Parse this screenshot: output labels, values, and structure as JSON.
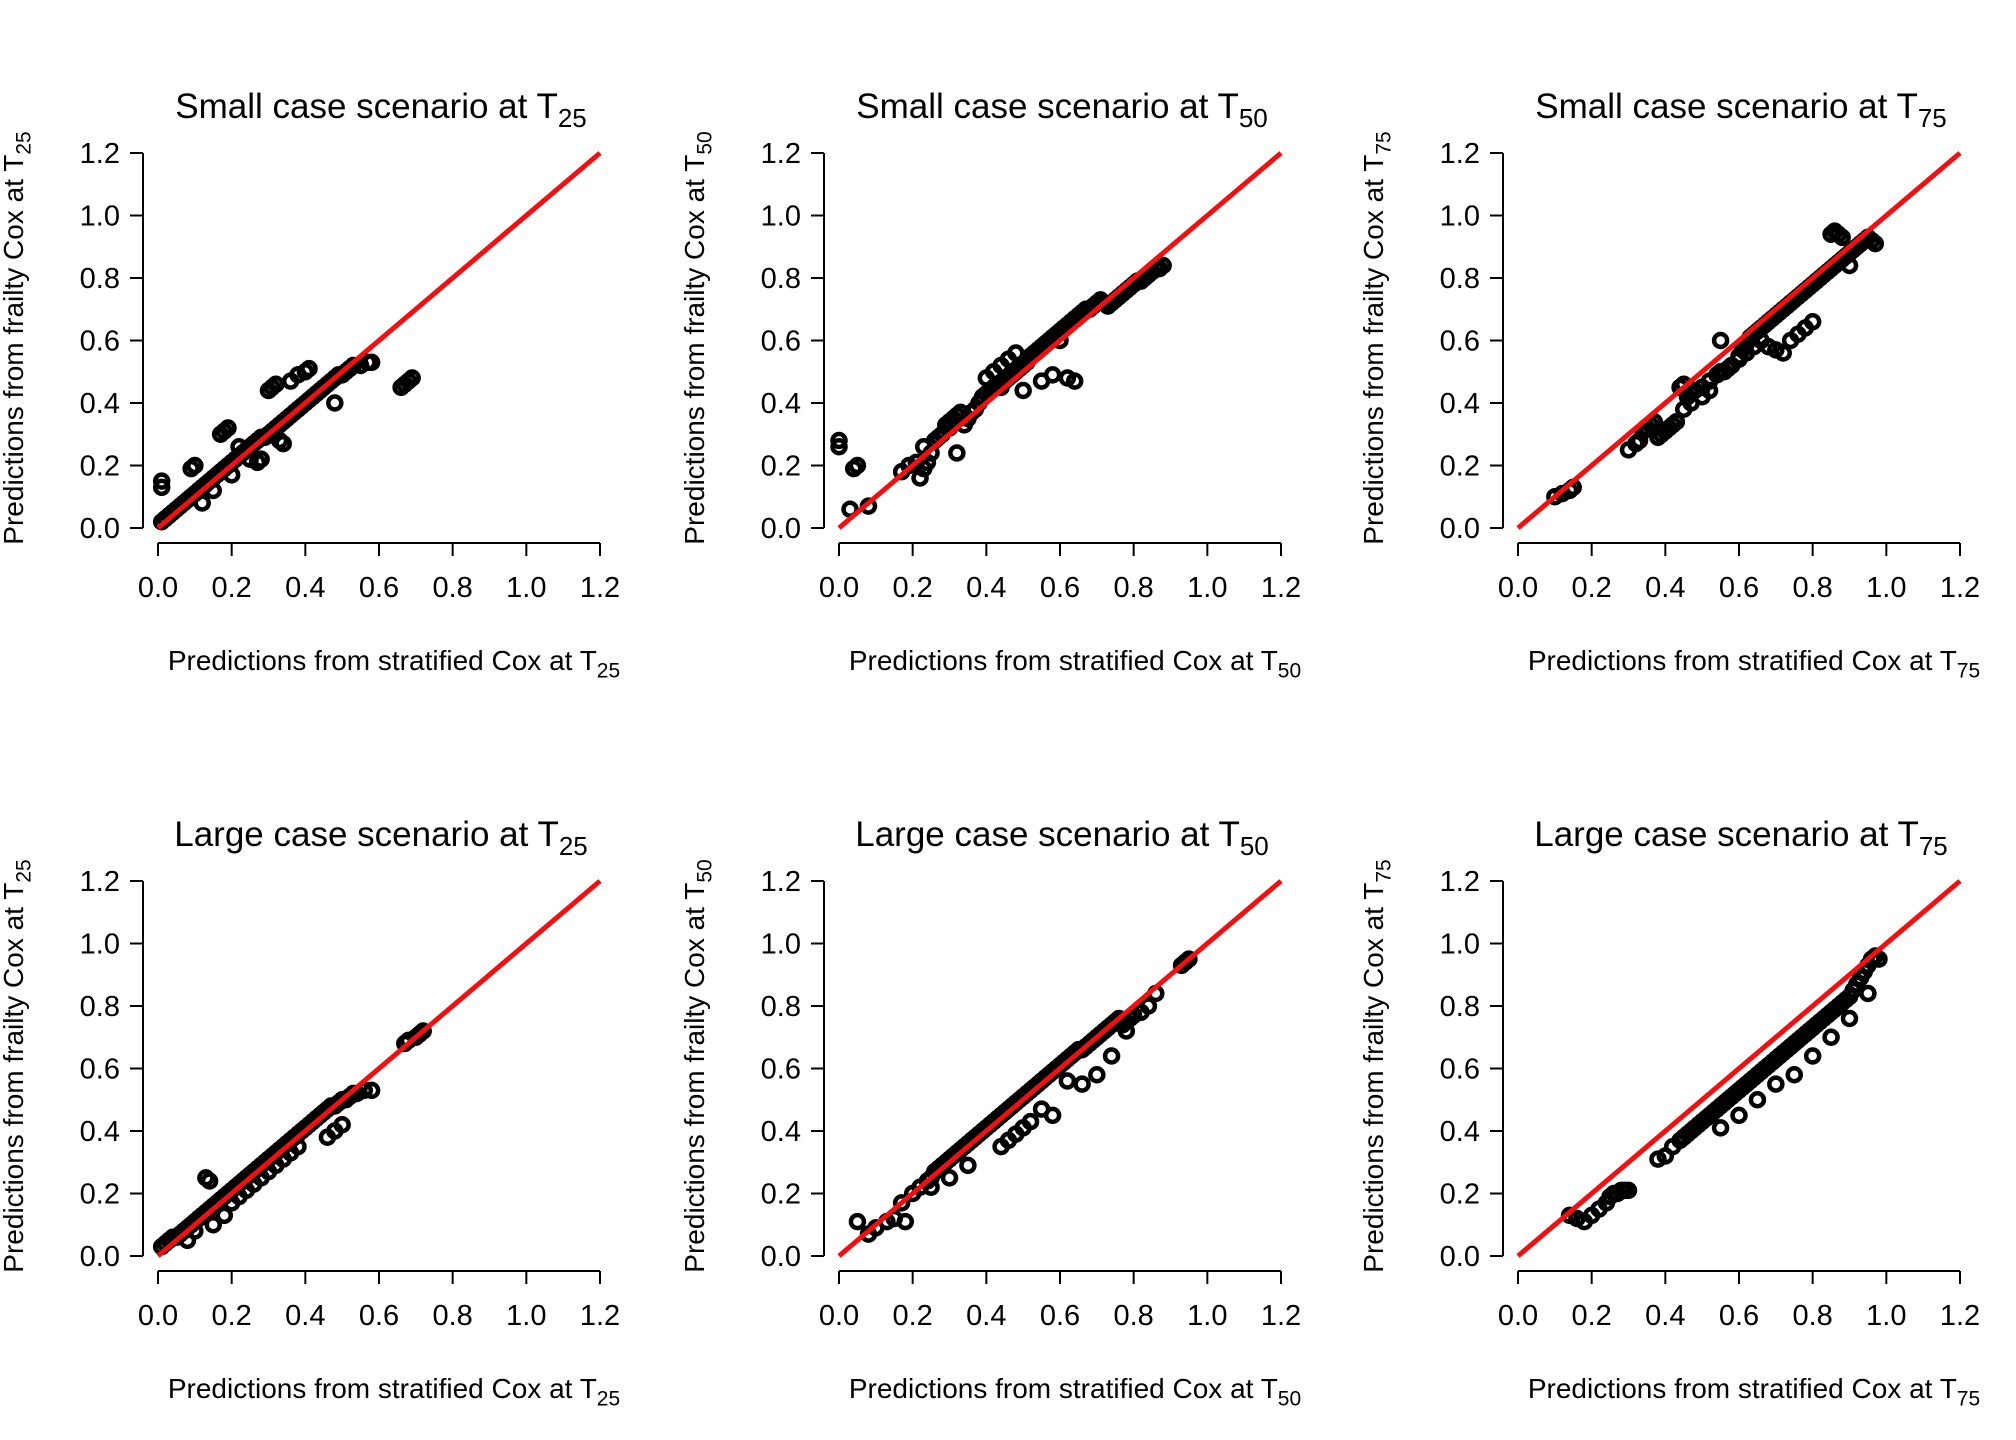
{
  "chart_data": [
    {
      "type": "scatter",
      "title": "Small case scenario at T",
      "title_sub": "25",
      "xlabel": "Predictions from stratified Cox at T",
      "xlabel_sub": "25",
      "ylabel": "Predictions from frailty Cox at T",
      "ylabel_sub": "25",
      "xlim": [
        0,
        1.2
      ],
      "ylim": [
        0,
        1.2
      ],
      "xticks": [
        "0.0",
        "0.2",
        "0.4",
        "0.6",
        "0.8",
        "1.0",
        "1.2"
      ],
      "yticks": [
        "0.0",
        "0.2",
        "0.4",
        "0.6",
        "0.8",
        "1.0",
        "1.2"
      ],
      "reference_line": {
        "from": [
          0,
          0
        ],
        "to": [
          1.2,
          1.2
        ],
        "color": "#ee1111"
      },
      "point_color": "#000000",
      "x": [
        0.01,
        0.02,
        0.03,
        0.04,
        0.05,
        0.06,
        0.07,
        0.08,
        0.09,
        0.1,
        0.11,
        0.12,
        0.13,
        0.14,
        0.15,
        0.16,
        0.17,
        0.18,
        0.19,
        0.2,
        0.21,
        0.22,
        0.23,
        0.24,
        0.25,
        0.26,
        0.27,
        0.28,
        0.29,
        0.3,
        0.31,
        0.32,
        0.33,
        0.34,
        0.35,
        0.36,
        0.37,
        0.38,
        0.39,
        0.4,
        0.41,
        0.42,
        0.43,
        0.44,
        0.45,
        0.46,
        0.47,
        0.48,
        0.49,
        0.5,
        0.51,
        0.52,
        0.53,
        0.55,
        0.57,
        0.58,
        0.01,
        0.01,
        0.09,
        0.1,
        0.17,
        0.18,
        0.19,
        0.3,
        0.31,
        0.32,
        0.36,
        0.38,
        0.4,
        0.41,
        0.15,
        0.2,
        0.25,
        0.28,
        0.33,
        0.34,
        0.48,
        0.66,
        0.67,
        0.68,
        0.69,
        0.12,
        0.22,
        0.27
      ],
      "y": [
        0.02,
        0.03,
        0.04,
        0.05,
        0.06,
        0.07,
        0.08,
        0.09,
        0.1,
        0.11,
        0.12,
        0.13,
        0.14,
        0.15,
        0.16,
        0.17,
        0.18,
        0.19,
        0.2,
        0.21,
        0.22,
        0.23,
        0.24,
        0.25,
        0.26,
        0.27,
        0.28,
        0.29,
        0.29,
        0.3,
        0.31,
        0.32,
        0.33,
        0.34,
        0.35,
        0.36,
        0.37,
        0.38,
        0.39,
        0.4,
        0.41,
        0.42,
        0.43,
        0.44,
        0.45,
        0.46,
        0.47,
        0.48,
        0.49,
        0.49,
        0.5,
        0.51,
        0.52,
        0.52,
        0.53,
        0.53,
        0.13,
        0.15,
        0.19,
        0.2,
        0.3,
        0.31,
        0.32,
        0.44,
        0.45,
        0.46,
        0.47,
        0.49,
        0.5,
        0.51,
        0.12,
        0.17,
        0.22,
        0.22,
        0.28,
        0.27,
        0.4,
        0.45,
        0.46,
        0.47,
        0.48,
        0.08,
        0.26,
        0.21
      ]
    },
    {
      "type": "scatter",
      "title": "Small case scenario at T",
      "title_sub": "50",
      "xlabel": "Predictions from stratified Cox at T",
      "xlabel_sub": "50",
      "ylabel": "Predictions from frailty Cox at T",
      "ylabel_sub": "50",
      "xlim": [
        0,
        1.2
      ],
      "ylim": [
        0,
        1.2
      ],
      "xticks": [
        "0.0",
        "0.2",
        "0.4",
        "0.6",
        "0.8",
        "1.0",
        "1.2"
      ],
      "yticks": [
        "0.0",
        "0.2",
        "0.4",
        "0.6",
        "0.8",
        "1.0",
        "1.2"
      ],
      "reference_line": {
        "from": [
          0,
          0
        ],
        "to": [
          1.2,
          1.2
        ],
        "color": "#ee1111"
      },
      "point_color": "#000000",
      "x": [
        0.0,
        0.0,
        0.03,
        0.04,
        0.05,
        0.08,
        0.17,
        0.19,
        0.21,
        0.22,
        0.23,
        0.24,
        0.25,
        0.26,
        0.27,
        0.28,
        0.29,
        0.3,
        0.31,
        0.32,
        0.33,
        0.34,
        0.35,
        0.36,
        0.37,
        0.38,
        0.39,
        0.4,
        0.41,
        0.42,
        0.43,
        0.44,
        0.45,
        0.46,
        0.47,
        0.48,
        0.49,
        0.5,
        0.51,
        0.52,
        0.53,
        0.54,
        0.55,
        0.56,
        0.57,
        0.58,
        0.59,
        0.6,
        0.61,
        0.62,
        0.63,
        0.64,
        0.65,
        0.66,
        0.67,
        0.68,
        0.69,
        0.7,
        0.71,
        0.72,
        0.73,
        0.74,
        0.75,
        0.76,
        0.77,
        0.78,
        0.79,
        0.8,
        0.81,
        0.82,
        0.83,
        0.84,
        0.85,
        0.86,
        0.87,
        0.88,
        0.4,
        0.42,
        0.44,
        0.46,
        0.48,
        0.5,
        0.55,
        0.58,
        0.6,
        0.62,
        0.64,
        0.32,
        0.3,
        0.23
      ],
      "y": [
        0.26,
        0.28,
        0.06,
        0.19,
        0.2,
        0.07,
        0.18,
        0.2,
        0.21,
        0.16,
        0.19,
        0.21,
        0.24,
        0.28,
        0.29,
        0.3,
        0.33,
        0.34,
        0.35,
        0.36,
        0.37,
        0.33,
        0.35,
        0.37,
        0.38,
        0.4,
        0.42,
        0.43,
        0.44,
        0.45,
        0.46,
        0.45,
        0.47,
        0.48,
        0.49,
        0.5,
        0.51,
        0.52,
        0.53,
        0.55,
        0.56,
        0.57,
        0.58,
        0.59,
        0.6,
        0.61,
        0.62,
        0.63,
        0.64,
        0.65,
        0.66,
        0.67,
        0.68,
        0.69,
        0.7,
        0.7,
        0.71,
        0.72,
        0.73,
        0.72,
        0.71,
        0.72,
        0.73,
        0.74,
        0.75,
        0.76,
        0.77,
        0.78,
        0.79,
        0.79,
        0.8,
        0.81,
        0.82,
        0.83,
        0.83,
        0.84,
        0.48,
        0.5,
        0.52,
        0.54,
        0.56,
        0.44,
        0.47,
        0.49,
        0.6,
        0.48,
        0.47,
        0.24,
        0.32,
        0.26
      ]
    },
    {
      "type": "scatter",
      "title": "Small case scenario at T",
      "title_sub": "75",
      "xlabel": "Predictions from stratified Cox at T",
      "xlabel_sub": "75",
      "ylabel": "Predictions from frailty Cox at T",
      "ylabel_sub": "75",
      "xlim": [
        0,
        1.2
      ],
      "ylim": [
        0,
        1.2
      ],
      "xticks": [
        "0.0",
        "0.2",
        "0.4",
        "0.6",
        "0.8",
        "1.0",
        "1.2"
      ],
      "yticks": [
        "0.0",
        "0.2",
        "0.4",
        "0.6",
        "0.8",
        "1.0",
        "1.2"
      ],
      "reference_line": {
        "from": [
          0,
          0
        ],
        "to": [
          1.2,
          1.2
        ],
        "color": "#ee1111"
      },
      "point_color": "#000000",
      "x": [
        0.1,
        0.12,
        0.14,
        0.15,
        0.3,
        0.32,
        0.33,
        0.34,
        0.35,
        0.36,
        0.37,
        0.38,
        0.39,
        0.4,
        0.41,
        0.42,
        0.43,
        0.44,
        0.45,
        0.46,
        0.47,
        0.48,
        0.5,
        0.52,
        0.54,
        0.55,
        0.56,
        0.57,
        0.58,
        0.6,
        0.61,
        0.62,
        0.63,
        0.64,
        0.65,
        0.66,
        0.67,
        0.68,
        0.69,
        0.7,
        0.71,
        0.72,
        0.73,
        0.74,
        0.75,
        0.76,
        0.77,
        0.78,
        0.79,
        0.8,
        0.81,
        0.82,
        0.83,
        0.84,
        0.85,
        0.86,
        0.87,
        0.88,
        0.89,
        0.9,
        0.91,
        0.92,
        0.93,
        0.94,
        0.95,
        0.96,
        0.97,
        0.85,
        0.86,
        0.87,
        0.88,
        0.9,
        0.55,
        0.58,
        0.6,
        0.62,
        0.64,
        0.66,
        0.68,
        0.7,
        0.72,
        0.74,
        0.76,
        0.78,
        0.8,
        0.45,
        0.47,
        0.5,
        0.52
      ],
      "y": [
        0.1,
        0.11,
        0.12,
        0.13,
        0.25,
        0.27,
        0.28,
        0.31,
        0.32,
        0.33,
        0.34,
        0.29,
        0.3,
        0.31,
        0.32,
        0.33,
        0.34,
        0.45,
        0.46,
        0.42,
        0.43,
        0.44,
        0.45,
        0.47,
        0.49,
        0.6,
        0.5,
        0.51,
        0.52,
        0.55,
        0.57,
        0.59,
        0.61,
        0.62,
        0.63,
        0.64,
        0.65,
        0.66,
        0.67,
        0.68,
        0.69,
        0.7,
        0.71,
        0.72,
        0.73,
        0.74,
        0.75,
        0.76,
        0.77,
        0.78,
        0.79,
        0.8,
        0.81,
        0.82,
        0.83,
        0.84,
        0.85,
        0.86,
        0.87,
        0.88,
        0.89,
        0.9,
        0.91,
        0.92,
        0.93,
        0.92,
        0.91,
        0.94,
        0.95,
        0.94,
        0.93,
        0.84,
        0.5,
        0.52,
        0.54,
        0.56,
        0.58,
        0.6,
        0.58,
        0.57,
        0.56,
        0.6,
        0.62,
        0.64,
        0.66,
        0.38,
        0.4,
        0.42,
        0.44
      ]
    },
    {
      "type": "scatter",
      "title": "Large case scenario at T",
      "title_sub": "25",
      "xlabel": "Predictions from stratified Cox at T",
      "xlabel_sub": "25",
      "ylabel": "Predictions from frailty Cox at T",
      "ylabel_sub": "25",
      "xlim": [
        0,
        1.2
      ],
      "ylim": [
        0,
        1.2
      ],
      "xticks": [
        "0.0",
        "0.2",
        "0.4",
        "0.6",
        "0.8",
        "1.0",
        "1.2"
      ],
      "yticks": [
        "0.0",
        "0.2",
        "0.4",
        "0.6",
        "0.8",
        "1.0",
        "1.2"
      ],
      "reference_line": {
        "from": [
          0,
          0
        ],
        "to": [
          1.2,
          1.2
        ],
        "color": "#ee1111"
      },
      "point_color": "#000000",
      "x": [
        0.01,
        0.02,
        0.03,
        0.04,
        0.05,
        0.06,
        0.07,
        0.08,
        0.09,
        0.1,
        0.11,
        0.12,
        0.13,
        0.14,
        0.15,
        0.16,
        0.17,
        0.18,
        0.19,
        0.2,
        0.21,
        0.22,
        0.23,
        0.24,
        0.25,
        0.26,
        0.27,
        0.28,
        0.29,
        0.3,
        0.31,
        0.32,
        0.33,
        0.34,
        0.35,
        0.36,
        0.37,
        0.38,
        0.39,
        0.4,
        0.41,
        0.42,
        0.43,
        0.44,
        0.45,
        0.46,
        0.47,
        0.48,
        0.49,
        0.5,
        0.51,
        0.52,
        0.53,
        0.54,
        0.56,
        0.58,
        0.67,
        0.68,
        0.7,
        0.71,
        0.72,
        0.13,
        0.14,
        0.18,
        0.2,
        0.22,
        0.24,
        0.26,
        0.28,
        0.3,
        0.32,
        0.34,
        0.36,
        0.38,
        0.46,
        0.48,
        0.5,
        0.08,
        0.1,
        0.15
      ],
      "y": [
        0.03,
        0.04,
        0.05,
        0.06,
        0.06,
        0.07,
        0.08,
        0.09,
        0.1,
        0.11,
        0.12,
        0.13,
        0.14,
        0.15,
        0.16,
        0.17,
        0.18,
        0.19,
        0.2,
        0.21,
        0.22,
        0.23,
        0.24,
        0.25,
        0.26,
        0.27,
        0.28,
        0.29,
        0.3,
        0.31,
        0.32,
        0.33,
        0.34,
        0.35,
        0.36,
        0.37,
        0.38,
        0.39,
        0.4,
        0.41,
        0.42,
        0.43,
        0.44,
        0.45,
        0.46,
        0.47,
        0.48,
        0.48,
        0.49,
        0.5,
        0.5,
        0.51,
        0.52,
        0.52,
        0.53,
        0.53,
        0.68,
        0.69,
        0.7,
        0.71,
        0.72,
        0.25,
        0.24,
        0.13,
        0.17,
        0.19,
        0.21,
        0.23,
        0.25,
        0.27,
        0.29,
        0.31,
        0.33,
        0.35,
        0.38,
        0.4,
        0.42,
        0.05,
        0.08,
        0.1
      ]
    },
    {
      "type": "scatter",
      "title": "Large case scenario at T",
      "title_sub": "50",
      "xlabel": "Predictions from stratified Cox at T",
      "xlabel_sub": "50",
      "ylabel": "Predictions from frailty Cox at T",
      "ylabel_sub": "50",
      "xlim": [
        0,
        1.2
      ],
      "ylim": [
        0,
        1.2
      ],
      "xticks": [
        "0.0",
        "0.2",
        "0.4",
        "0.6",
        "0.8",
        "1.0",
        "1.2"
      ],
      "yticks": [
        "0.0",
        "0.2",
        "0.4",
        "0.6",
        "0.8",
        "1.0",
        "1.2"
      ],
      "reference_line": {
        "from": [
          0,
          0
        ],
        "to": [
          1.2,
          1.2
        ],
        "color": "#ee1111"
      },
      "point_color": "#000000",
      "x": [
        0.05,
        0.08,
        0.1,
        0.13,
        0.15,
        0.17,
        0.18,
        0.2,
        0.22,
        0.24,
        0.25,
        0.26,
        0.27,
        0.28,
        0.29,
        0.3,
        0.31,
        0.32,
        0.33,
        0.34,
        0.35,
        0.36,
        0.37,
        0.38,
        0.39,
        0.4,
        0.41,
        0.42,
        0.43,
        0.44,
        0.45,
        0.46,
        0.47,
        0.48,
        0.49,
        0.5,
        0.51,
        0.52,
        0.53,
        0.54,
        0.55,
        0.56,
        0.57,
        0.58,
        0.59,
        0.6,
        0.61,
        0.62,
        0.63,
        0.64,
        0.65,
        0.66,
        0.67,
        0.68,
        0.69,
        0.7,
        0.71,
        0.72,
        0.73,
        0.74,
        0.75,
        0.76,
        0.77,
        0.78,
        0.79,
        0.8,
        0.82,
        0.84,
        0.86,
        0.93,
        0.94,
        0.95,
        0.44,
        0.46,
        0.48,
        0.5,
        0.52,
        0.55,
        0.58,
        0.62,
        0.66,
        0.7,
        0.74,
        0.78,
        0.25,
        0.3,
        0.35
      ],
      "y": [
        0.11,
        0.07,
        0.09,
        0.11,
        0.12,
        0.17,
        0.11,
        0.2,
        0.22,
        0.24,
        0.25,
        0.27,
        0.28,
        0.29,
        0.3,
        0.31,
        0.32,
        0.33,
        0.34,
        0.35,
        0.36,
        0.37,
        0.38,
        0.39,
        0.4,
        0.41,
        0.42,
        0.43,
        0.44,
        0.45,
        0.46,
        0.47,
        0.48,
        0.49,
        0.5,
        0.51,
        0.52,
        0.53,
        0.54,
        0.55,
        0.56,
        0.57,
        0.58,
        0.59,
        0.6,
        0.61,
        0.62,
        0.63,
        0.64,
        0.65,
        0.66,
        0.66,
        0.67,
        0.68,
        0.69,
        0.7,
        0.71,
        0.72,
        0.73,
        0.74,
        0.75,
        0.76,
        0.74,
        0.75,
        0.76,
        0.77,
        0.78,
        0.8,
        0.84,
        0.93,
        0.94,
        0.95,
        0.35,
        0.37,
        0.39,
        0.41,
        0.43,
        0.47,
        0.45,
        0.56,
        0.55,
        0.58,
        0.64,
        0.72,
        0.22,
        0.25,
        0.29
      ]
    },
    {
      "type": "scatter",
      "title": "Large case scenario at T",
      "title_sub": "75",
      "xlabel": "Predictions from stratified Cox at T",
      "xlabel_sub": "75",
      "ylabel": "Predictions from frailty Cox at T",
      "ylabel_sub": "75",
      "xlim": [
        0,
        1.2
      ],
      "ylim": [
        0,
        1.2
      ],
      "xticks": [
        "0.0",
        "0.2",
        "0.4",
        "0.6",
        "0.8",
        "1.0",
        "1.2"
      ],
      "yticks": [
        "0.0",
        "0.2",
        "0.4",
        "0.6",
        "0.8",
        "1.0",
        "1.2"
      ],
      "reference_line": {
        "from": [
          0,
          0
        ],
        "to": [
          1.2,
          1.2
        ],
        "color": "#ee1111"
      },
      "point_color": "#000000",
      "x": [
        0.14,
        0.16,
        0.18,
        0.2,
        0.22,
        0.24,
        0.25,
        0.26,
        0.27,
        0.28,
        0.29,
        0.3,
        0.38,
        0.4,
        0.42,
        0.44,
        0.45,
        0.46,
        0.47,
        0.48,
        0.49,
        0.5,
        0.51,
        0.52,
        0.53,
        0.54,
        0.55,
        0.56,
        0.57,
        0.58,
        0.59,
        0.6,
        0.61,
        0.62,
        0.63,
        0.64,
        0.65,
        0.66,
        0.67,
        0.68,
        0.69,
        0.7,
        0.71,
        0.72,
        0.73,
        0.74,
        0.75,
        0.76,
        0.77,
        0.78,
        0.79,
        0.8,
        0.81,
        0.82,
        0.83,
        0.84,
        0.85,
        0.86,
        0.87,
        0.88,
        0.89,
        0.9,
        0.91,
        0.92,
        0.93,
        0.94,
        0.95,
        0.96,
        0.97,
        0.98,
        0.55,
        0.6,
        0.65,
        0.7,
        0.75,
        0.8,
        0.85,
        0.9,
        0.95
      ],
      "y": [
        0.13,
        0.12,
        0.11,
        0.13,
        0.15,
        0.17,
        0.19,
        0.2,
        0.2,
        0.21,
        0.21,
        0.21,
        0.31,
        0.32,
        0.35,
        0.37,
        0.38,
        0.39,
        0.4,
        0.41,
        0.42,
        0.43,
        0.44,
        0.45,
        0.46,
        0.47,
        0.48,
        0.49,
        0.5,
        0.51,
        0.52,
        0.53,
        0.54,
        0.55,
        0.56,
        0.57,
        0.58,
        0.59,
        0.6,
        0.61,
        0.62,
        0.63,
        0.64,
        0.65,
        0.66,
        0.67,
        0.68,
        0.69,
        0.7,
        0.71,
        0.72,
        0.73,
        0.74,
        0.75,
        0.76,
        0.77,
        0.78,
        0.79,
        0.8,
        0.81,
        0.82,
        0.83,
        0.85,
        0.87,
        0.89,
        0.91,
        0.93,
        0.95,
        0.96,
        0.95,
        0.41,
        0.45,
        0.5,
        0.55,
        0.58,
        0.64,
        0.7,
        0.76,
        0.84
      ]
    }
  ]
}
